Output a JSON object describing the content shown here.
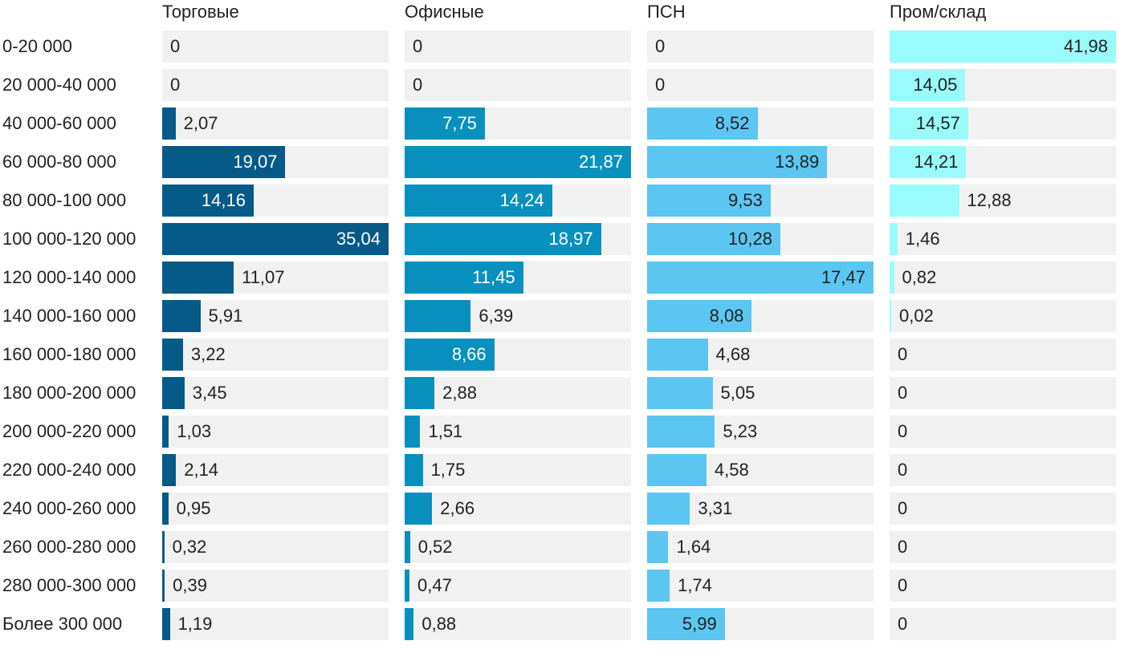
{
  "chart_data": {
    "type": "bar",
    "orientation": "horizontal",
    "categories": [
      "0-20 000",
      "20 000-40 000",
      "40 000-60 000",
      "60 000-80 000",
      "80 000-100 000",
      "100 000-120 000",
      "120 000-140 000",
      "140 000-160 000",
      "160 000-180 000",
      "180 000-200 000",
      "200 000-220 000",
      "220 000-240 000",
      "240 000-260 000",
      "260 000-280 000",
      "280 000-300 000",
      "Более 300 000"
    ],
    "series": [
      {
        "name": "Торговые",
        "color": "#065a87",
        "values": [
          0,
          0,
          2.07,
          19.07,
          14.16,
          35.04,
          11.07,
          5.91,
          3.22,
          3.45,
          1.03,
          2.14,
          0.95,
          0.32,
          0.39,
          1.19
        ],
        "labels": [
          "0",
          "0",
          "2,07",
          "19,07",
          "14,16",
          "35,04",
          "11,07",
          "5,91",
          "3,22",
          "3,45",
          "1,03",
          "2,14",
          "0,95",
          "0,32",
          "0,39",
          "1,19"
        ]
      },
      {
        "name": "Офисные",
        "color": "#0890be",
        "values": [
          0,
          0,
          7.75,
          21.87,
          14.24,
          18.97,
          11.45,
          6.39,
          8.66,
          2.88,
          1.51,
          1.75,
          2.66,
          0.52,
          0.47,
          0.88
        ],
        "labels": [
          "0",
          "0",
          "7,75",
          "21,87",
          "14,24",
          "18,97",
          "11,45",
          "6,39",
          "8,66",
          "2,88",
          "1,51",
          "1,75",
          "2,66",
          "0,52",
          "0,47",
          "0,88"
        ]
      },
      {
        "name": "ПСН",
        "color": "#5bc6f1",
        "values": [
          0,
          0,
          8.52,
          13.89,
          9.53,
          10.28,
          17.47,
          8.08,
          4.68,
          5.05,
          5.23,
          4.58,
          3.31,
          1.64,
          1.74,
          5.99
        ],
        "labels": [
          "0",
          "0",
          "8,52",
          "13,89",
          "9,53",
          "10,28",
          "17,47",
          "8,08",
          "4,68",
          "5,05",
          "5,23",
          "4,58",
          "3,31",
          "1,64",
          "1,74",
          "5,99"
        ]
      },
      {
        "name": "Пром/склад",
        "color": "#99fbfc",
        "values": [
          41.98,
          14.05,
          14.57,
          14.21,
          12.88,
          1.46,
          0.82,
          0.02,
          0,
          0,
          0,
          0,
          0,
          0,
          0,
          0
        ],
        "labels": [
          "41,98",
          "14,05",
          "14,57",
          "14,21",
          "12,88",
          "1,46",
          "0,82",
          "0,02",
          "0",
          "0",
          "0",
          "0",
          "0",
          "0",
          "0",
          "0"
        ]
      }
    ],
    "value_label_position": "inside-end-or-outside",
    "track_color": "#f1f1f1"
  }
}
